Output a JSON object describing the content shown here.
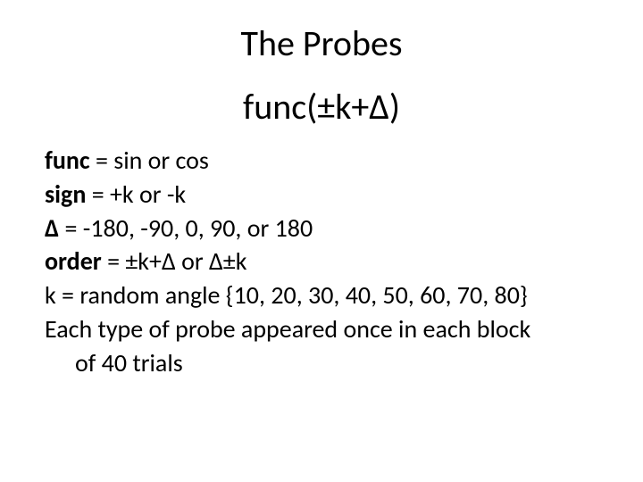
{
  "title": "The Probes",
  "formula": "func(±k+Δ)",
  "lines": {
    "func_label": "func",
    "func_text": " = sin or cos",
    "sign_label": "sign",
    "sign_text": " = +k or -k",
    "delta_label": "Δ",
    "delta_text": " = -180, -90, 0, 90, or 180",
    "order_label": "order",
    "order_text": " = ±k+Δ or Δ±k",
    "k_text": "k = random angle {10, 20, 30, 40, 50, 60, 70, 80}",
    "trials_text": "Each type of probe appeared once in each block",
    "trials_text2": "of 40 trials"
  },
  "colors": {
    "text": "#000000",
    "background": "#ffffff"
  },
  "fontsizes": {
    "title": 40,
    "formula": 40,
    "body": 28
  }
}
